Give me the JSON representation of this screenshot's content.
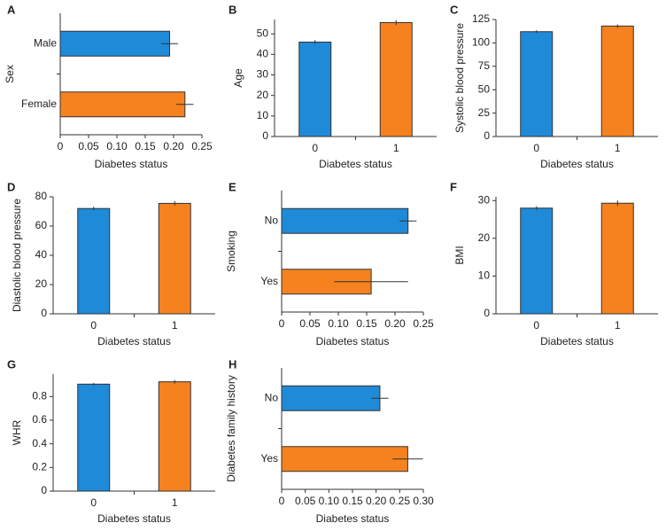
{
  "chart_data": [
    {
      "label": "A",
      "type": "bar",
      "orientation": "horizontal",
      "xlabel": "Diabetes status",
      "ylabel": "Sex",
      "categories": [
        "Male",
        "Female"
      ],
      "values": [
        0.193,
        0.22
      ],
      "errors": [
        0.015,
        0.015
      ],
      "colors": [
        "#1f8ad8",
        "#f5821f"
      ],
      "xlim": [
        0,
        0.25
      ],
      "xticks": [
        0,
        0.05,
        {
          "value": 0.1,
          "label": "0.10"
        },
        0.15,
        {
          "value": 0.2,
          "label": "0.20"
        },
        0.25
      ]
    },
    {
      "label": "B",
      "type": "bar",
      "orientation": "vertical",
      "xlabel": "Diabetes status",
      "ylabel": "Age",
      "categories": [
        "0",
        "1"
      ],
      "values": [
        46,
        55.5
      ],
      "errors": [
        1,
        1.2
      ],
      "colors": [
        "#1f8ad8",
        "#f5821f"
      ],
      "ylim": [
        0,
        57
      ],
      "yticks": [
        0,
        10,
        20,
        30,
        40,
        50
      ]
    },
    {
      "label": "C",
      "type": "bar",
      "orientation": "vertical",
      "xlabel": "Diabetes status",
      "ylabel": "Systolic blood pressure",
      "categories": [
        "0",
        "1"
      ],
      "values": [
        112,
        118
      ],
      "errors": [
        1.5,
        1.8
      ],
      "colors": [
        "#1f8ad8",
        "#f5821f"
      ],
      "ylim": [
        0,
        125
      ],
      "yticks": [
        0,
        25,
        50,
        75,
        100,
        125
      ]
    },
    {
      "label": "D",
      "type": "bar",
      "orientation": "vertical",
      "xlabel": "Diabetes status",
      "ylabel": "Diastolic blood pressure",
      "categories": [
        "0",
        "1"
      ],
      "values": [
        72,
        75.5
      ],
      "errors": [
        1.2,
        1.5
      ],
      "colors": [
        "#1f8ad8",
        "#f5821f"
      ],
      "ylim": [
        0,
        80
      ],
      "yticks": [
        0,
        20,
        40,
        60,
        80
      ]
    },
    {
      "label": "E",
      "type": "bar",
      "orientation": "horizontal",
      "xlabel": "Diabetes status",
      "ylabel": "Smoking",
      "categories": [
        "No",
        "Yes"
      ],
      "values": [
        0.223,
        0.158
      ],
      "errors": [
        0.015,
        0.065
      ],
      "colors": [
        "#1f8ad8",
        "#f5821f"
      ],
      "xlim": [
        0,
        0.25
      ],
      "xticks": [
        0,
        0.05,
        {
          "value": 0.1,
          "label": "0.10"
        },
        0.15,
        {
          "value": 0.2,
          "label": "0.20"
        },
        0.25
      ]
    },
    {
      "label": "F",
      "type": "bar",
      "orientation": "vertical",
      "xlabel": "Diabetes status",
      "ylabel": "BMI",
      "categories": [
        "0",
        "1"
      ],
      "values": [
        28,
        29.3
      ],
      "errors": [
        0.5,
        0.7
      ],
      "colors": [
        "#1f8ad8",
        "#f5821f"
      ],
      "ylim": [
        0,
        31
      ],
      "yticks": [
        0,
        10,
        20,
        30
      ]
    },
    {
      "label": "G",
      "type": "bar",
      "orientation": "vertical",
      "xlabel": "Diabetes status",
      "ylabel": "WHR",
      "categories": [
        "0",
        "1"
      ],
      "values": [
        0.905,
        0.925
      ],
      "errors": [
        0.01,
        0.015
      ],
      "colors": [
        "#1f8ad8",
        "#f5821f"
      ],
      "ylim": [
        0,
        0.99
      ],
      "yticks": [
        0,
        0.2,
        0.4,
        0.6,
        0.8
      ]
    },
    {
      "label": "H",
      "type": "bar",
      "orientation": "horizontal",
      "xlabel": "Diabetes status",
      "ylabel": "Diabetes family history",
      "categories": [
        "No",
        "Yes"
      ],
      "values": [
        0.208,
        0.267
      ],
      "errors": [
        0.018,
        0.032
      ],
      "colors": [
        "#1f8ad8",
        "#f5821f"
      ],
      "xlim": [
        0,
        0.3
      ],
      "xticks": [
        0,
        0.05,
        {
          "value": 0.1,
          "label": "0.10"
        },
        0.15,
        {
          "value": 0.2,
          "label": "0.20"
        },
        0.25,
        {
          "value": 0.3,
          "label": "0.30"
        }
      ]
    }
  ]
}
